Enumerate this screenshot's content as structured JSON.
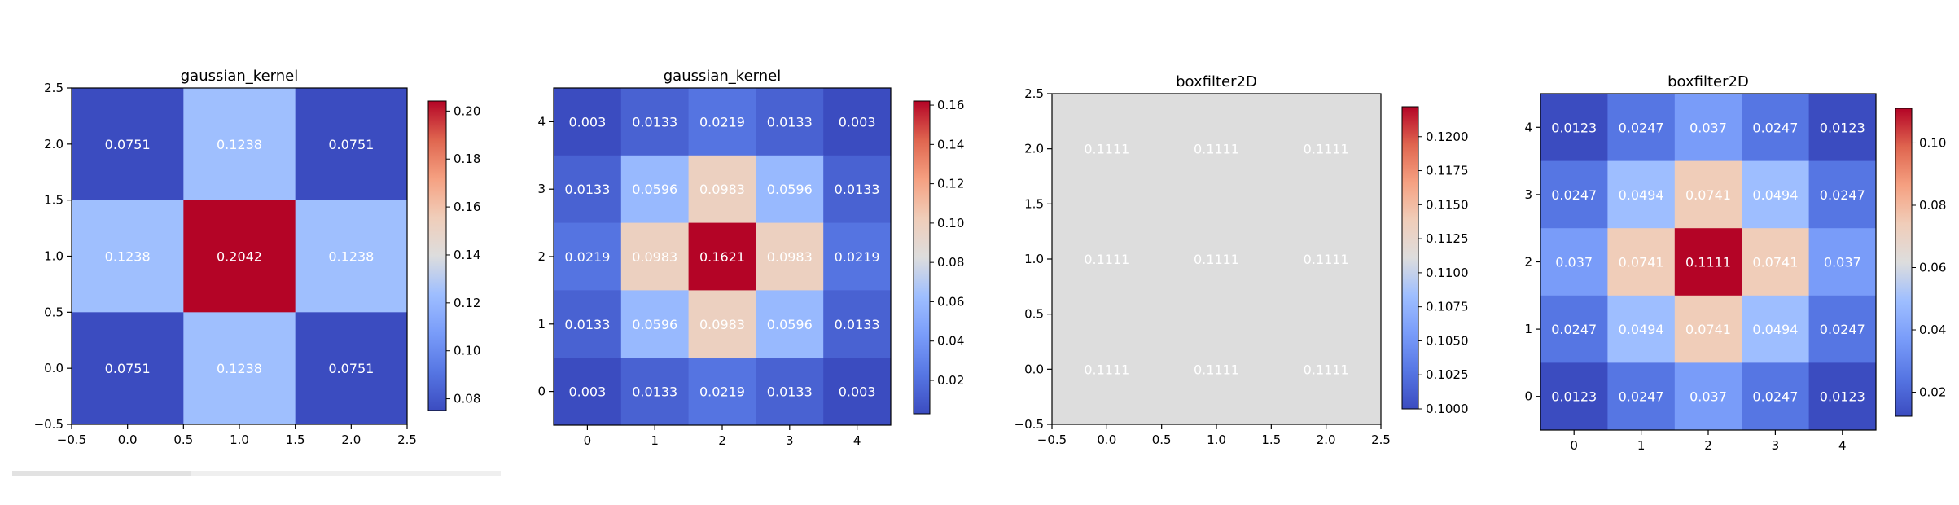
{
  "chart_data": [
    {
      "type": "heatmap",
      "title": "gaussian_kernel",
      "axis_style": "continuous",
      "x_ticks": [
        "−0.5",
        "0.0",
        "0.5",
        "1.0",
        "1.5",
        "2.0",
        "2.5"
      ],
      "y_ticks": [
        "−0.5",
        "0.0",
        "0.5",
        "1.0",
        "1.5",
        "2.0",
        "2.5"
      ],
      "xlim": [
        -0.5,
        2.5
      ],
      "ylim": [
        -0.5,
        2.5
      ],
      "rows_top_to_bottom": [
        [
          "0.0751",
          "0.1238",
          "0.0751"
        ],
        [
          "0.1238",
          "0.2042",
          "0.1238"
        ],
        [
          "0.0751",
          "0.1238",
          "0.0751"
        ]
      ],
      "colorbar": {
        "min": 0.0751,
        "max": 0.2042,
        "ticks": [
          "0.08",
          "0.10",
          "0.12",
          "0.14",
          "0.16",
          "0.18",
          "0.20"
        ]
      },
      "colormap": "coolwarm"
    },
    {
      "type": "heatmap",
      "title": "gaussian_kernel",
      "axis_style": "integer",
      "x_ticks": [
        "0",
        "1",
        "2",
        "3",
        "4"
      ],
      "y_ticks": [
        "0",
        "1",
        "2",
        "3",
        "4"
      ],
      "xlim": [
        -0.5,
        4.5
      ],
      "ylim": [
        -0.5,
        4.5
      ],
      "rows_top_to_bottom": [
        [
          "0.003",
          "0.0133",
          "0.0219",
          "0.0133",
          "0.003"
        ],
        [
          "0.0133",
          "0.0596",
          "0.0983",
          "0.0596",
          "0.0133"
        ],
        [
          "0.0219",
          "0.0983",
          "0.1621",
          "0.0983",
          "0.0219"
        ],
        [
          "0.0133",
          "0.0596",
          "0.0983",
          "0.0596",
          "0.0133"
        ],
        [
          "0.003",
          "0.0133",
          "0.0219",
          "0.0133",
          "0.003"
        ]
      ],
      "colorbar": {
        "min": 0.003,
        "max": 0.1621,
        "ticks": [
          "0.02",
          "0.04",
          "0.06",
          "0.08",
          "0.10",
          "0.12",
          "0.14",
          "0.16"
        ]
      },
      "colormap": "coolwarm"
    },
    {
      "type": "heatmap",
      "title": "boxfilter2D",
      "axis_style": "continuous",
      "x_ticks": [
        "−0.5",
        "0.0",
        "0.5",
        "1.0",
        "1.5",
        "2.0",
        "2.5"
      ],
      "y_ticks": [
        "−0.5",
        "0.0",
        "0.5",
        "1.0",
        "1.5",
        "2.0",
        "2.5"
      ],
      "xlim": [
        -0.5,
        2.5
      ],
      "ylim": [
        -0.5,
        2.5
      ],
      "rows_top_to_bottom": [
        [
          "0.1111",
          "0.1111",
          "0.1111"
        ],
        [
          "0.1111",
          "0.1111",
          "0.1111"
        ],
        [
          "0.1111",
          "0.1111",
          "0.1111"
        ]
      ],
      "colorbar": {
        "min": 0.1,
        "max": 0.1222,
        "ticks": [
          "0.1000",
          "0.1025",
          "0.1050",
          "0.1075",
          "0.1100",
          "0.1125",
          "0.1150",
          "0.1175",
          "0.1200"
        ]
      },
      "colormap": "coolwarm"
    },
    {
      "type": "heatmap",
      "title": "boxfilter2D",
      "axis_style": "integer",
      "x_ticks": [
        "0",
        "1",
        "2",
        "3",
        "4"
      ],
      "y_ticks": [
        "0",
        "1",
        "2",
        "3",
        "4"
      ],
      "xlim": [
        -0.5,
        4.5
      ],
      "ylim": [
        -0.5,
        4.5
      ],
      "rows_top_to_bottom": [
        [
          "0.0123",
          "0.0247",
          "0.037",
          "0.0247",
          "0.0123"
        ],
        [
          "0.0247",
          "0.0494",
          "0.0741",
          "0.0494",
          "0.0247"
        ],
        [
          "0.037",
          "0.0741",
          "0.1111",
          "0.0741",
          "0.037"
        ],
        [
          "0.0247",
          "0.0494",
          "0.0741",
          "0.0494",
          "0.0247"
        ],
        [
          "0.0123",
          "0.0247",
          "0.037",
          "0.0247",
          "0.0123"
        ]
      ],
      "colorbar": {
        "min": 0.0123,
        "max": 0.1111,
        "ticks": [
          "0.02",
          "0.04",
          "0.06",
          "0.08",
          "0.10"
        ]
      },
      "colormap": "coolwarm"
    }
  ]
}
